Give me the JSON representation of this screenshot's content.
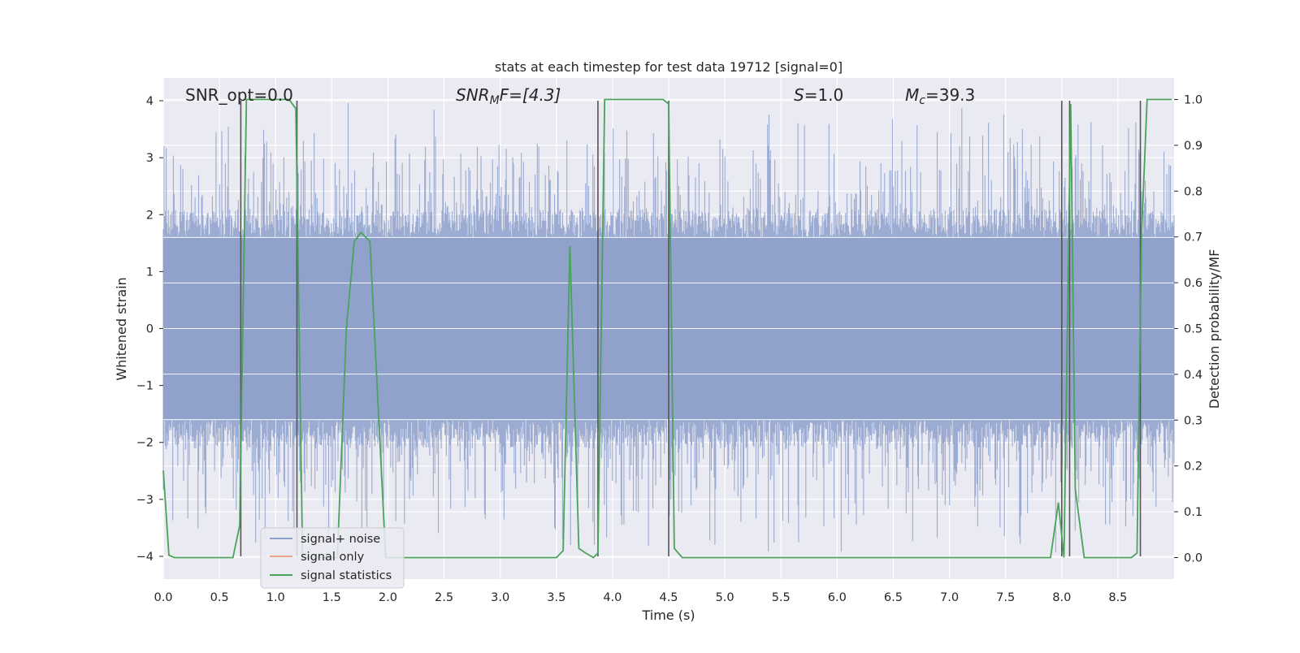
{
  "chart_data": {
    "type": "line",
    "title": "stats at each timestep for test data 19712 [signal=0]",
    "xlabel": "Time (s)",
    "ylabel": "Whitened strain",
    "y2label": "Detection probability/MF",
    "xlim": [
      0,
      9
    ],
    "ylim": [
      -4.4,
      4.4
    ],
    "y2lim": [
      -0.047,
      1.047
    ],
    "x_ticks": [
      0.0,
      0.5,
      1.0,
      1.5,
      2.0,
      2.5,
      3.0,
      3.5,
      4.0,
      4.5,
      5.0,
      5.5,
      6.0,
      6.5,
      7.0,
      7.5,
      8.0,
      8.5
    ],
    "x_tick_labels": [
      "0.0",
      "0.5",
      "1.0",
      "1.5",
      "2.0",
      "2.5",
      "3.0",
      "3.5",
      "4.0",
      "4.5",
      "5.0",
      "5.5",
      "6.0",
      "6.5",
      "7.0",
      "7.5",
      "8.0",
      "8.5"
    ],
    "y_ticks": [
      4,
      3,
      2,
      1,
      0,
      -1,
      -2,
      -3,
      -4
    ],
    "y_tick_labels": [
      "4",
      "3",
      "2",
      "1",
      "0",
      "−1",
      "−2",
      "−3",
      "−4"
    ],
    "y2_ticks": [
      1.0,
      0.9,
      0.8,
      0.7,
      0.6,
      0.5,
      0.4,
      0.3,
      0.2,
      0.1,
      0.0
    ],
    "y2_tick_labels": [
      "1.0",
      "0.9",
      "0.8",
      "0.7",
      "0.6",
      "0.5",
      "0.4",
      "0.3",
      "0.2",
      "0.1",
      "0.0"
    ],
    "grid": true,
    "legend_position": "lower-left",
    "annotations": {
      "snr_opt": "SNR_opt=0.0",
      "snr_mf_main": "SNR",
      "snr_mf_sub": "M",
      "snr_mf_tail": "F=[4.3]",
      "s_main": "S",
      "s_tail": "=1.0",
      "mc_main": "M",
      "mc_sub": "c",
      "mc_tail": "=39.3"
    },
    "series": [
      {
        "name": "signal+ noise",
        "color": "#8da0cb",
        "noise_envelope": {
          "core_amplitude": 1.6,
          "peak_max": 4.0,
          "x_range": [
            0,
            9
          ]
        }
      },
      {
        "name": "signal only",
        "color": "#e8a58a",
        "values": []
      },
      {
        "name": "signal statistics",
        "color": "#4aa35a",
        "axis": "right",
        "x": [
          0.0,
          0.05,
          0.1,
          0.62,
          0.68,
          0.74,
          0.78,
          1.12,
          1.18,
          1.24,
          1.55,
          1.63,
          1.7,
          1.76,
          1.84,
          1.98,
          2.05,
          3.5,
          3.56,
          3.62,
          3.7,
          3.76,
          3.83,
          3.87,
          3.93,
          4.45,
          4.5,
          4.55,
          4.62,
          7.9,
          7.97,
          8.02,
          8.08,
          8.12,
          8.2,
          8.62,
          8.67,
          8.71,
          8.76,
          8.85,
          8.98
        ],
        "values": [
          0.19,
          0.005,
          0.0,
          0.0,
          0.07,
          1.0,
          1.0,
          1.0,
          0.98,
          0.0,
          0.0,
          0.5,
          0.69,
          0.71,
          0.69,
          0.0,
          0.0,
          0.0,
          0.015,
          0.68,
          0.02,
          0.01,
          0.0,
          0.01,
          1.0,
          1.0,
          0.99,
          0.02,
          0.0,
          0.0,
          0.12,
          0.0,
          0.99,
          0.15,
          0.0,
          0.0,
          0.01,
          0.7,
          1.0,
          1.0,
          1.0
        ]
      }
    ],
    "vertical_markers": [
      0.69,
      1.19,
      3.87,
      4.5,
      8.0,
      8.07,
      8.7
    ]
  }
}
